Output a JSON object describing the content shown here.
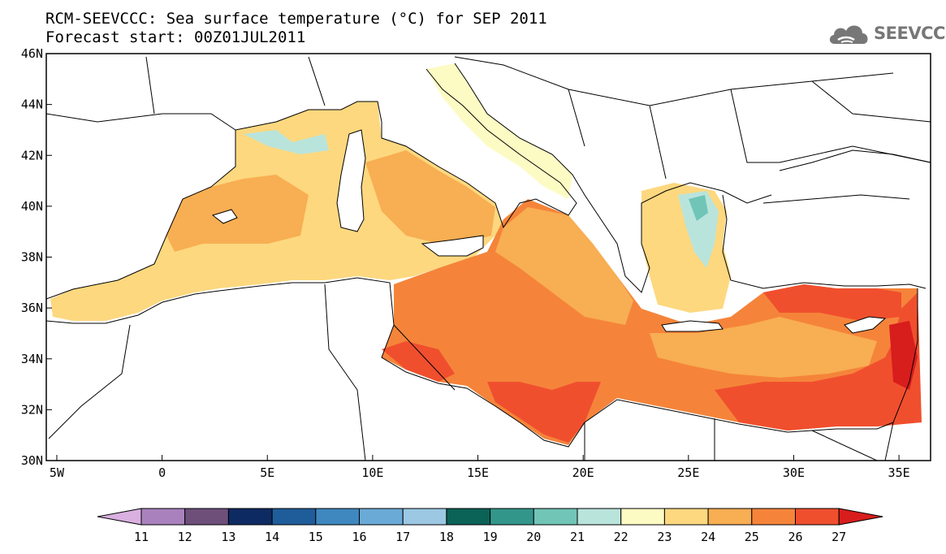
{
  "title_line1": "RCM-SEEVCCC: Sea surface temperature (°C) for SEP 2011",
  "title_line2": "Forecast start: 00Z01JUL2011",
  "logo": {
    "text": "SEEVCCC",
    "icon": "cloud-icon",
    "color": "#777777"
  },
  "map": {
    "lon_range": [
      -5.5,
      36.5
    ],
    "lat_range": [
      30,
      46
    ],
    "lon_ticks": [
      {
        "value": -5,
        "label": "5W"
      },
      {
        "value": 0,
        "label": "0"
      },
      {
        "value": 5,
        "label": "5E"
      },
      {
        "value": 10,
        "label": "10E"
      },
      {
        "value": 15,
        "label": "15E"
      },
      {
        "value": 20,
        "label": "20E"
      },
      {
        "value": 25,
        "label": "25E"
      },
      {
        "value": 30,
        "label": "30E"
      },
      {
        "value": 35,
        "label": "35E"
      }
    ],
    "lat_ticks": [
      {
        "value": 30,
        "label": "30N"
      },
      {
        "value": 32,
        "label": "32N"
      },
      {
        "value": 34,
        "label": "34N"
      },
      {
        "value": 36,
        "label": "36N"
      },
      {
        "value": 38,
        "label": "38N"
      },
      {
        "value": 40,
        "label": "40N"
      },
      {
        "value": 42,
        "label": "42N"
      },
      {
        "value": 44,
        "label": "44N"
      },
      {
        "value": 46,
        "label": "46N"
      }
    ]
  },
  "colorbar": {
    "labels": [
      "11",
      "12",
      "13",
      "14",
      "15",
      "16",
      "17",
      "18",
      "19",
      "20",
      "21",
      "22",
      "23",
      "24",
      "25",
      "26",
      "27"
    ],
    "colors": [
      "#d9b0e0",
      "#a982bd",
      "#6e4f7a",
      "#0e2a62",
      "#1f5d9a",
      "#3f87bf",
      "#6aaad6",
      "#9cc8e3",
      "#0b6256",
      "#33968a",
      "#70c5b7",
      "#b9e4dc",
      "#fdfbc4",
      "#fdd87f",
      "#f8ae52",
      "#f5843a",
      "#f04f2e",
      "#d81d1d"
    ]
  }
}
